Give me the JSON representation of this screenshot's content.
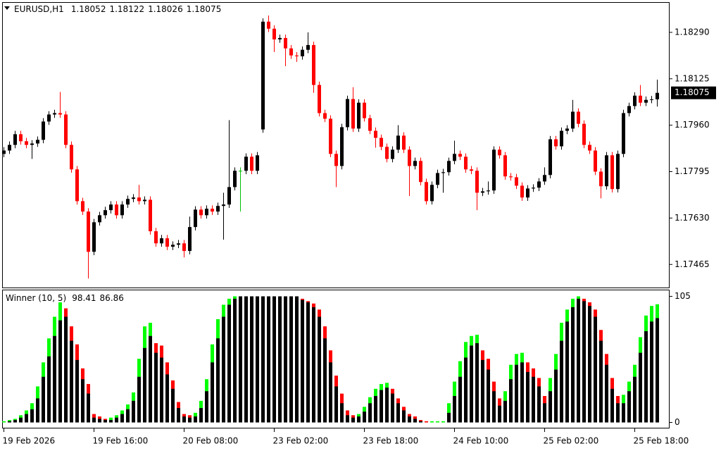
{
  "chart_data": [
    {
      "type": "candlestick",
      "title": "EURUSD,H1",
      "categories": [
        "19 Feb 2026",
        null,
        null,
        null,
        null,
        null,
        null,
        null,
        null,
        null,
        null,
        null,
        null,
        null,
        null,
        null,
        "19 Feb 16:00",
        null,
        null,
        null,
        null,
        null,
        null,
        null,
        null,
        null,
        null,
        null,
        null,
        null,
        null,
        null,
        "20 Feb 08:00",
        null,
        null,
        null,
        null,
        null,
        null,
        null,
        null,
        null,
        null,
        null,
        null,
        null,
        null,
        null,
        "23 Feb 02:00",
        null,
        null,
        null,
        null,
        null,
        null,
        null,
        null,
        null,
        null,
        null,
        null,
        null,
        null,
        null,
        "23 Feb 18:00",
        null,
        null,
        null,
        null,
        null,
        null,
        null,
        null,
        null,
        null,
        null,
        null,
        null,
        null,
        null,
        "24 Feb 10:00",
        null,
        null,
        null,
        null,
        null,
        null,
        null,
        null,
        null,
        null,
        null,
        null,
        null,
        null,
        null,
        "25 Feb 02:00",
        null,
        null,
        null,
        null,
        null,
        null,
        null,
        null,
        null,
        null,
        null,
        null,
        null,
        null,
        null,
        "25 Feb 18:00",
        null,
        null,
        null,
        null
      ],
      "open": [
        1.17858,
        1.1787,
        1.1789,
        1.17928,
        1.17903,
        1.1789,
        1.17895,
        1.17908,
        1.17973,
        1.17998,
        1.18003,
        1.17998,
        1.1789,
        1.17803,
        1.1769,
        1.17653,
        1.1751,
        1.17615,
        1.1764,
        1.17658,
        1.17678,
        1.1764,
        1.17678,
        1.17698,
        1.17703,
        1.1769,
        1.17695,
        1.17583,
        1.1754,
        1.17558,
        1.17528,
        1.17535,
        1.1754,
        1.17513,
        1.17598,
        1.1766,
        1.1764,
        1.17663,
        1.17653,
        1.17673,
        1.17678,
        1.1774,
        1.17798,
        1.17798,
        1.17848,
        1.17798,
        1.17945,
        1.18328,
        1.18303,
        1.18265,
        1.1827,
        1.18233,
        1.18208,
        1.18205,
        1.18228,
        1.18245,
        1.18103,
        1.18003,
        1.17983,
        1.17858,
        1.17815,
        1.17953,
        1.18053,
        1.17948,
        1.1804,
        1.17985,
        1.1794,
        1.17915,
        1.17883,
        1.1784,
        1.17873,
        1.17923,
        1.17873,
        1.17815,
        1.17833,
        1.17758,
        1.1769,
        1.17748,
        1.1779,
        1.17793,
        1.17833,
        1.17858,
        1.17848,
        1.17803,
        1.17798,
        1.1772,
        1.17725,
        1.17728,
        1.17873,
        1.17853,
        1.17778,
        1.17775,
        1.17745,
        1.17703,
        1.17735,
        1.17738,
        1.1776,
        1.17783,
        1.1791,
        1.17885,
        1.1794,
        1.17948,
        1.18008,
        1.17965,
        1.1789,
        1.1787,
        1.17795,
        1.17743,
        1.17853,
        1.17733,
        1.17858,
        1.18003,
        1.18028,
        1.18065,
        1.1804,
        1.1805,
        1.18052
      ],
      "high": [
        1.17882,
        1.17902,
        1.1794,
        1.1794,
        1.17915,
        1.17907,
        1.1792,
        1.17985,
        1.1801,
        1.18015,
        1.18078,
        1.1801,
        1.17902,
        1.17815,
        1.17702,
        1.17665,
        1.17627,
        1.17652,
        1.1767,
        1.1769,
        1.1769,
        1.1769,
        1.1771,
        1.17715,
        1.17748,
        1.17707,
        1.17707,
        1.17595,
        1.1757,
        1.1757,
        1.17547,
        1.17552,
        1.17552,
        1.17635,
        1.17672,
        1.17672,
        1.17675,
        1.17675,
        1.17685,
        1.1772,
        1.17978,
        1.1781,
        1.1781,
        1.1786,
        1.1786,
        1.17865,
        1.1834,
        1.1835,
        1.18315,
        1.18282,
        1.18282,
        1.18245,
        1.1822,
        1.1824,
        1.1829,
        1.18257,
        1.18115,
        1.18015,
        1.17995,
        1.1787,
        1.17965,
        1.18065,
        1.18095,
        1.18052,
        1.18052,
        1.17997,
        1.17952,
        1.17927,
        1.17895,
        1.17885,
        1.1796,
        1.17935,
        1.17885,
        1.17845,
        1.17845,
        1.1777,
        1.1776,
        1.17802,
        1.17805,
        1.17845,
        1.17905,
        1.1787,
        1.1786,
        1.17815,
        1.1781,
        1.17737,
        1.1776,
        1.17885,
        1.17885,
        1.17865,
        1.1779,
        1.17787,
        1.17757,
        1.17747,
        1.1775,
        1.17772,
        1.1781,
        1.17922,
        1.17922,
        1.17952,
        1.1796,
        1.1805,
        1.1802,
        1.17977,
        1.17902,
        1.17882,
        1.17807,
        1.17865,
        1.17865,
        1.1787,
        1.18015,
        1.1804,
        1.18077,
        1.18103,
        1.18062,
        1.18064,
        1.18122
      ],
      "low": [
        1.17846,
        1.17858,
        1.17878,
        1.17891,
        1.17878,
        1.1784,
        1.17883,
        1.17896,
        1.17961,
        1.17986,
        1.17986,
        1.17878,
        1.17791,
        1.17678,
        1.17641,
        1.17415,
        1.17498,
        1.17603,
        1.17628,
        1.17646,
        1.17628,
        1.17628,
        1.17666,
        1.17686,
        1.17678,
        1.17678,
        1.17571,
        1.17528,
        1.17528,
        1.17516,
        1.17516,
        1.17523,
        1.1749,
        1.17501,
        1.17586,
        1.17628,
        1.17628,
        1.17641,
        1.17641,
        1.17553,
        1.17666,
        1.17728,
        1.17653,
        1.17786,
        1.17786,
        1.17786,
        1.17933,
        1.18291,
        1.1822,
        1.18253,
        1.1817,
        1.18196,
        1.18185,
        1.18193,
        1.18216,
        1.18075,
        1.17991,
        1.17971,
        1.17846,
        1.1774,
        1.17803,
        1.17941,
        1.17936,
        1.17936,
        1.17973,
        1.17928,
        1.1788,
        1.17871,
        1.17828,
        1.17828,
        1.17861,
        1.17861,
        1.17708,
        1.17803,
        1.17746,
        1.17678,
        1.17678,
        1.17736,
        1.1772,
        1.17781,
        1.17821,
        1.17836,
        1.17791,
        1.17786,
        1.17658,
        1.17708,
        1.17713,
        1.17716,
        1.17841,
        1.17766,
        1.17763,
        1.17733,
        1.17691,
        1.17691,
        1.17723,
        1.17726,
        1.17748,
        1.17771,
        1.17873,
        1.17873,
        1.17928,
        1.17936,
        1.17953,
        1.17878,
        1.17858,
        1.17783,
        1.177,
        1.17731,
        1.17721,
        1.17721,
        1.17846,
        1.17991,
        1.18016,
        1.18028,
        1.18028,
        1.18038,
        1.18026
      ],
      "close": [
        1.1787,
        1.1789,
        1.17928,
        1.17903,
        1.1789,
        1.17895,
        1.17908,
        1.17973,
        1.17998,
        1.18003,
        1.17998,
        1.1789,
        1.17803,
        1.1769,
        1.17653,
        1.1751,
        1.17615,
        1.1764,
        1.17658,
        1.17678,
        1.1764,
        1.17678,
        1.17698,
        1.17703,
        1.1769,
        1.17695,
        1.17583,
        1.1754,
        1.17558,
        1.17528,
        1.17535,
        1.1754,
        1.17513,
        1.17598,
        1.1766,
        1.1764,
        1.17663,
        1.17653,
        1.17673,
        1.17678,
        1.1774,
        1.17798,
        1.17798,
        1.17848,
        1.17798,
        1.17853,
        1.18328,
        1.18303,
        1.18265,
        1.1827,
        1.18233,
        1.18208,
        1.18205,
        1.18228,
        1.18245,
        1.18103,
        1.18003,
        1.17983,
        1.17858,
        1.17815,
        1.17953,
        1.18053,
        1.17948,
        1.1804,
        1.17985,
        1.1794,
        1.17915,
        1.17883,
        1.1784,
        1.17873,
        1.17923,
        1.17873,
        1.17815,
        1.17833,
        1.17758,
        1.1769,
        1.17748,
        1.1779,
        1.17793,
        1.17833,
        1.17858,
        1.17848,
        1.17803,
        1.17798,
        1.1772,
        1.17725,
        1.17728,
        1.17873,
        1.17853,
        1.17778,
        1.17775,
        1.17745,
        1.17703,
        1.17735,
        1.17738,
        1.1776,
        1.17783,
        1.1791,
        1.17885,
        1.1794,
        1.17948,
        1.18008,
        1.17965,
        1.1789,
        1.1787,
        1.17795,
        1.17743,
        1.17853,
        1.17733,
        1.17858,
        1.18003,
        1.18028,
        1.18065,
        1.1804,
        1.1805,
        1.18052,
        1.18075
      ],
      "up_color": "#000000",
      "down_color": "#ff0000",
      "doji_color": "#00c000",
      "ylim": [
        1.17383,
        1.18395
      ],
      "yticks": [
        {
          "value": 1.1829,
          "label": "1.18290"
        },
        1.18125,
        {
          "value": 1.1796,
          "label": "1.17960"
        },
        1.17795,
        {
          "value": 1.1763,
          "label": "1.17630"
        },
        1.17465
      ]
    },
    {
      "type": "histogram",
      "title": "Winner (10, 5)",
      "series": [
        {
          "up_color": "#00ff00",
          "down_color": "#ff0000",
          "values": [
            1,
            2,
            3,
            6,
            10,
            16,
            30,
            50,
            70,
            88,
            100,
            95,
            80,
            65,
            45,
            32,
            7,
            5,
            3,
            4,
            6,
            10,
            15,
            25,
            53,
            80,
            83,
            66,
            64,
            50,
            35,
            17,
            7,
            6,
            8,
            18,
            36,
            65,
            86,
            98,
            103,
            105,
            105,
            105,
            105,
            105,
            105,
            105,
            105,
            105,
            105,
            105,
            105,
            103,
            101,
            99,
            94,
            80,
            60,
            39,
            24,
            10,
            6,
            7,
            13,
            21,
            28,
            32,
            33,
            28,
            20,
            13,
            7,
            5,
            2,
            1,
            1,
            1,
            1,
            16,
            34,
            51,
            67,
            72,
            73,
            60,
            53,
            34,
            20,
            26,
            48,
            57,
            58,
            50,
            45,
            37,
            22,
            37,
            57,
            83,
            94,
            103,
            105,
            103,
            100,
            94,
            77,
            57,
            37,
            22,
            23,
            34,
            48,
            71,
            89,
            97,
            98.41
          ]
        },
        {
          "color": "#000000",
          "values": [
            0,
            1,
            2,
            4,
            7,
            11,
            20,
            38,
            55,
            72,
            85,
            88,
            68,
            52,
            36,
            24,
            4,
            3,
            2,
            2,
            4,
            7,
            11,
            18,
            38,
            62,
            72,
            58,
            54,
            40,
            28,
            12,
            5,
            4,
            5,
            12,
            26,
            50,
            70,
            88,
            98,
            103,
            105,
            105,
            105,
            105,
            105,
            105,
            105,
            105,
            105,
            105,
            105,
            102,
            100,
            96,
            88,
            70,
            50,
            30,
            16,
            6,
            4,
            5,
            9,
            16,
            22,
            27,
            29,
            24,
            16,
            10,
            5,
            3,
            1,
            0,
            0,
            0,
            0,
            8,
            22,
            38,
            54,
            64,
            66,
            52,
            44,
            26,
            14,
            18,
            36,
            48,
            50,
            42,
            38,
            30,
            16,
            26,
            44,
            68,
            84,
            96,
            103,
            101,
            97,
            88,
            68,
            48,
            28,
            16,
            16,
            26,
            38,
            58,
            76,
            84,
            86.86
          ]
        }
      ],
      "ylim": [
        -5,
        110
      ],
      "yticks": [
        105,
        0
      ]
    }
  ]
}
